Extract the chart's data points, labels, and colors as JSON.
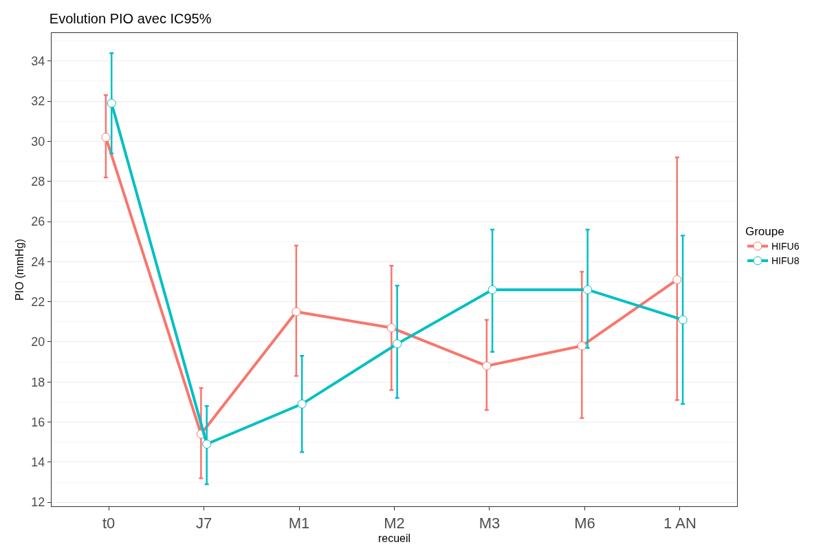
{
  "chart_data": {
    "type": "line",
    "title": "Evolution PIO avec IC95%",
    "xlabel": "recueil",
    "ylabel": "PIO (mmHg)",
    "legend_title": "Groupe",
    "categories": [
      "t0",
      "J7",
      "M1",
      "M2",
      "M3",
      "M6",
      "1 AN"
    ],
    "series": [
      {
        "name": "HIFU6",
        "color": "#f8766d",
        "values": [
          30.2,
          15.4,
          21.5,
          20.7,
          18.8,
          19.8,
          23.1
        ],
        "errors": [
          [
            28.2,
            32.3
          ],
          [
            13.2,
            17.7
          ],
          [
            18.3,
            24.8
          ],
          [
            17.6,
            23.8
          ],
          [
            16.6,
            21.1
          ],
          [
            16.2,
            23.5
          ],
          [
            17.1,
            29.2
          ]
        ]
      },
      {
        "name": "HIFU8",
        "color": "#00bfc4",
        "values": [
          31.9,
          14.9,
          16.9,
          19.9,
          22.6,
          22.6,
          21.1
        ],
        "errors": [
          [
            29.4,
            34.4
          ],
          [
            12.9,
            16.8
          ],
          [
            14.5,
            19.3
          ],
          [
            17.2,
            22.8
          ],
          [
            19.5,
            25.6
          ],
          [
            19.7,
            25.6
          ],
          [
            16.9,
            25.3
          ]
        ]
      }
    ],
    "ylim": [
      11.8,
      35.4
    ],
    "yticks": [
      12,
      14,
      16,
      18,
      20,
      22,
      24,
      26,
      28,
      30,
      32,
      34
    ],
    "grid": "y",
    "legend": "right",
    "marker": "circle",
    "line_style": "solid"
  }
}
